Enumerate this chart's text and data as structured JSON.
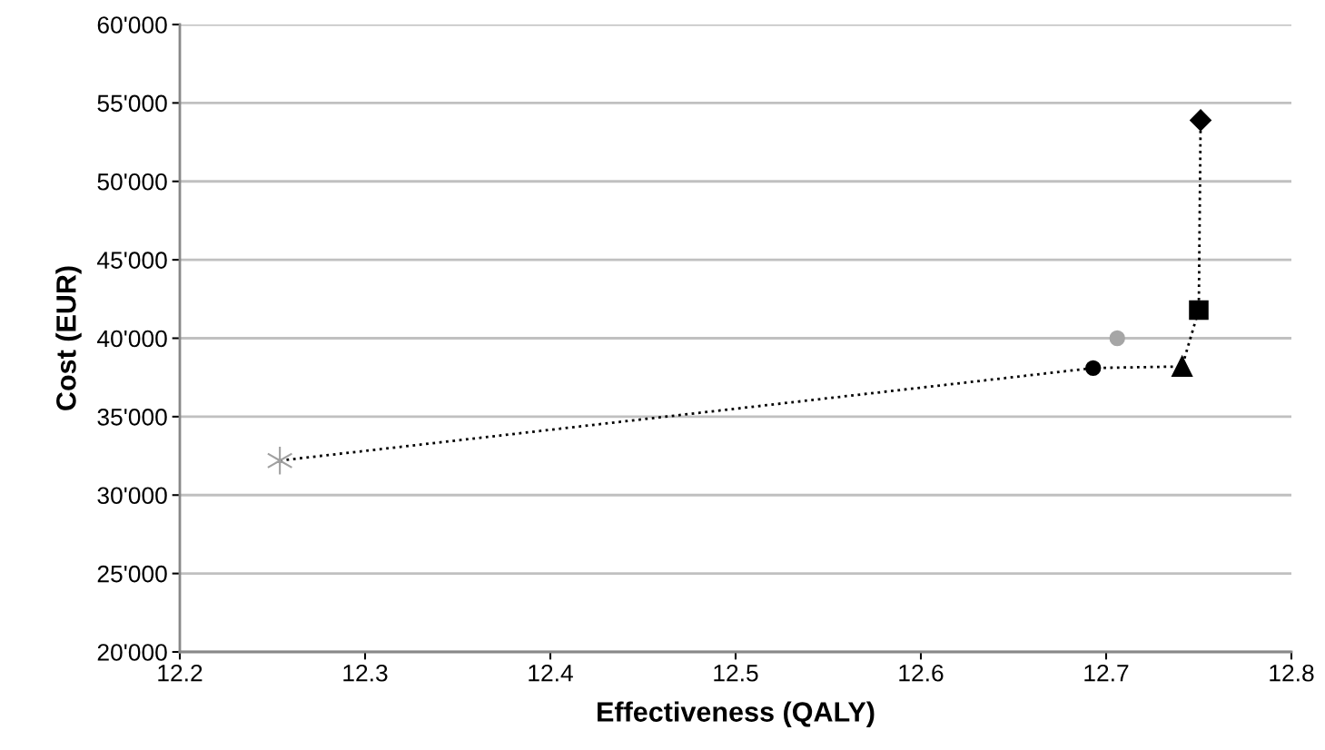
{
  "chart_data": {
    "type": "scatter",
    "xlabel": "Effectiveness (QALY)",
    "ylabel": "Cost (EUR)",
    "xlim": [
      12.2,
      12.8
    ],
    "xticks": [
      12.2,
      12.3,
      12.4,
      12.5,
      12.6,
      12.7,
      12.8
    ],
    "ylim": [
      20000,
      60000
    ],
    "yticks": [
      {
        "value": 20000,
        "label": "20'000"
      },
      {
        "value": 25000,
        "label": "25'000"
      },
      {
        "value": 30000,
        "label": "30'000"
      },
      {
        "value": 35000,
        "label": "35'000"
      },
      {
        "value": 40000,
        "label": "40'000"
      },
      {
        "value": 45000,
        "label": "45'000"
      },
      {
        "value": 50000,
        "label": "50'000"
      },
      {
        "value": 55000,
        "label": "55'000"
      },
      {
        "value": 60000,
        "label": "60'000"
      }
    ],
    "grid": "y",
    "series": [
      {
        "type": "line",
        "color": "#000000",
        "line_style": "dotted",
        "marker": "none",
        "x": [
          12.254,
          12.693,
          12.741,
          12.75,
          12.751
        ],
        "values": [
          32200,
          38100,
          38200,
          41800,
          53900
        ]
      },
      {
        "color": "#a0a0a0",
        "marker": "cross",
        "x": [
          12.254
        ],
        "values": [
          32200
        ]
      },
      {
        "color": "#000000",
        "marker": "circle",
        "x": [
          12.693
        ],
        "values": [
          38100
        ]
      },
      {
        "color": "#a6a6a6",
        "marker": "circle",
        "x": [
          12.706
        ],
        "values": [
          40000
        ]
      },
      {
        "color": "#000000",
        "marker": "triangle",
        "x": [
          12.741
        ],
        "values": [
          38200
        ]
      },
      {
        "color": "#000000",
        "marker": "square",
        "x": [
          12.75
        ],
        "values": [
          41800
        ]
      },
      {
        "color": "#000000",
        "marker": "diamond",
        "x": [
          12.751
        ],
        "values": [
          53900
        ]
      }
    ]
  }
}
